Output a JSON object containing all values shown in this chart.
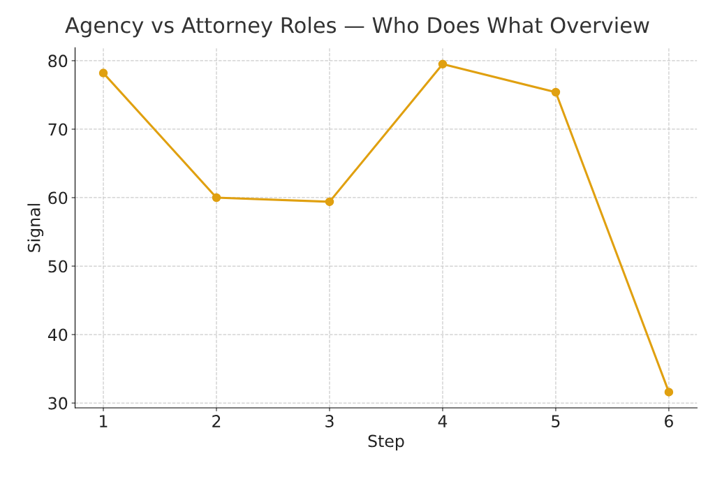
{
  "chart_data": {
    "type": "line",
    "title": "Agency vs Attorney Roles — Who Does What Overview",
    "xlabel": "Step",
    "ylabel": "Signal",
    "x": [
      1,
      2,
      3,
      4,
      5,
      6
    ],
    "series": [
      {
        "color": "#e0a010",
        "values": [
          78.2,
          60.0,
          59.4,
          79.5,
          75.4,
          31.6
        ]
      }
    ],
    "xlim": [
      0.75,
      6.25
    ],
    "xticks": [
      1,
      2,
      3,
      4,
      5,
      6
    ],
    "ylim": [
      29.3,
      81.9
    ],
    "yticks": [
      30,
      40,
      50,
      60,
      70,
      80
    ],
    "grid": true,
    "marker": "circle",
    "line_style": "solid"
  }
}
